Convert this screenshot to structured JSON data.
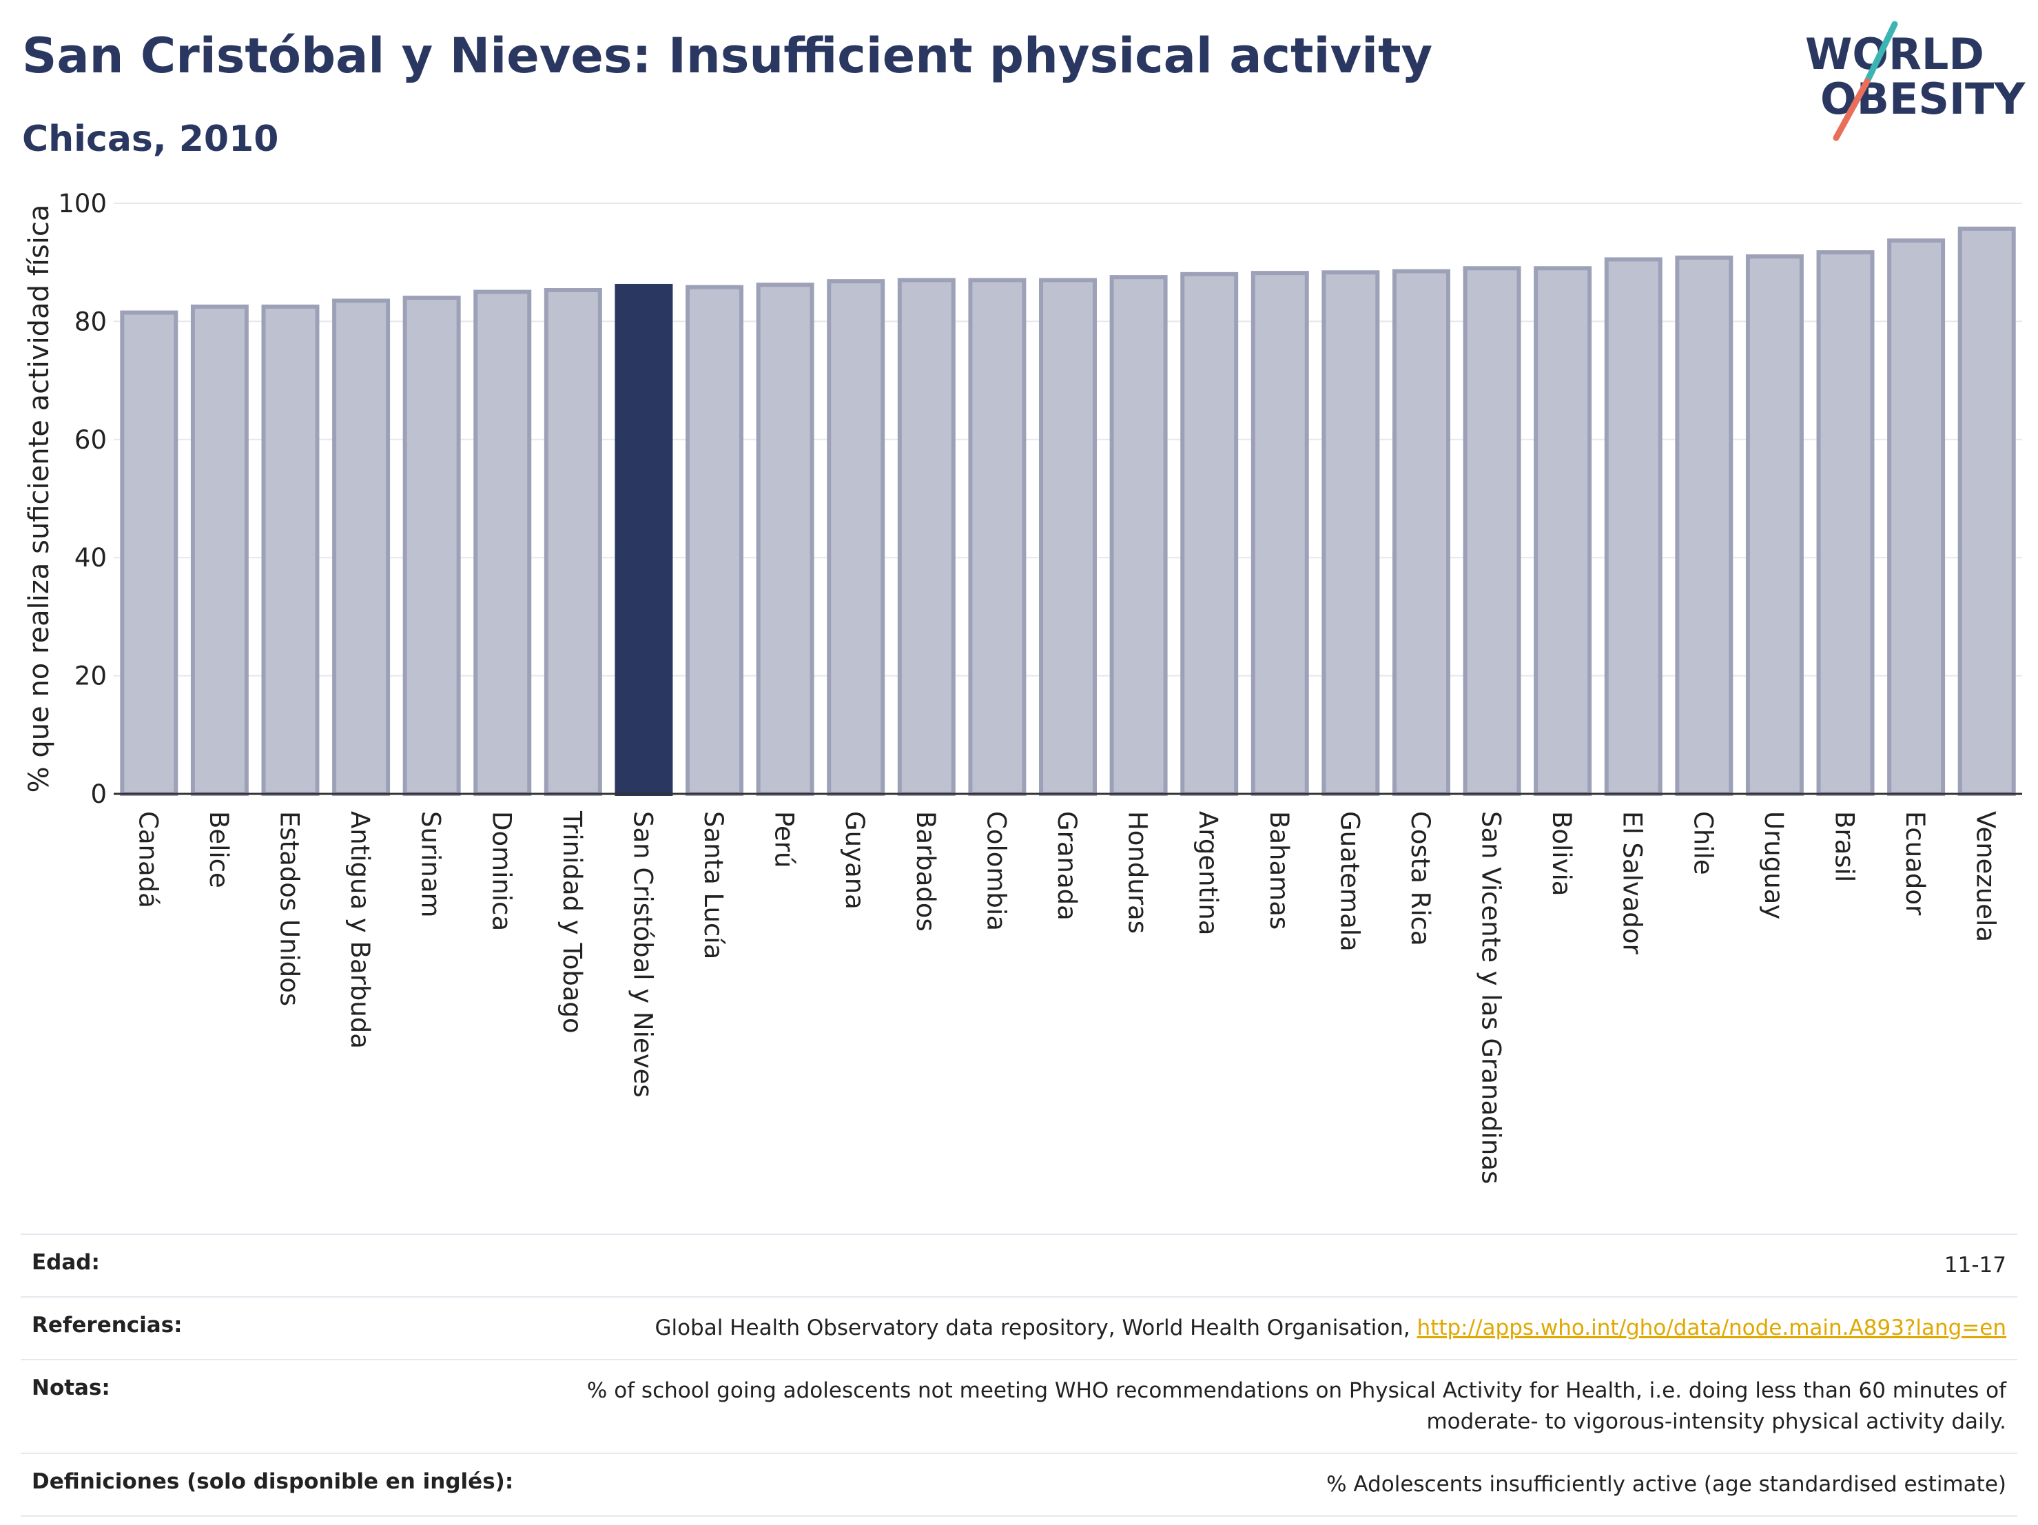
{
  "header": {
    "title": "San Cristóbal y Nieves: Insufficient physical activity",
    "subtitle": "Chicas, 2010"
  },
  "logo": {
    "line1": "WORLD",
    "line2": "OBESITY"
  },
  "colors": {
    "highlight": "#2a3760",
    "bar_fill": "#bec1d0",
    "bar_stroke": "#9da1b8",
    "title": "#2a3760",
    "link": "#e0a800",
    "logo_teal": "#3cb4b4",
    "logo_coral": "#e8705a"
  },
  "chart_data": {
    "type": "bar",
    "ylabel": "% que no realiza suficiente actividad física",
    "ylim": [
      0,
      100
    ],
    "yticks": [
      0,
      20,
      40,
      60,
      80,
      100
    ],
    "grid": true,
    "highlight": "San Cristóbal y Nieves",
    "categories": [
      "Canadá",
      "Belice",
      "Estados Unidos",
      "Antigua y Barbuda",
      "Surinam",
      "Dominica",
      "Trinidad y Tobago",
      "San Cristóbal y Nieves",
      "Santa Lucía",
      "Perú",
      "Guyana",
      "Barbados",
      "Colombia",
      "Granada",
      "Honduras",
      "Argentina",
      "Bahamas",
      "Guatemala",
      "Costa Rica",
      "San Vicente y las Granadinas",
      "Bolivia",
      "El Salvador",
      "Chile",
      "Uruguay",
      "Brasil",
      "Ecuador",
      "Venezuela"
    ],
    "values": [
      81.5,
      82.5,
      82.5,
      83.5,
      84,
      85,
      85.3,
      86,
      85.8,
      86.2,
      86.8,
      87,
      87,
      87,
      87.5,
      88,
      88.2,
      88.3,
      88.5,
      89,
      89,
      90.5,
      90.8,
      91,
      91.7,
      93.7,
      95.7
    ]
  },
  "info": {
    "age_label": "Edad:",
    "age_value": "11-17",
    "refs_label": "Referencias:",
    "refs_text": "Global Health Observatory data repository, World Health Organisation, ",
    "refs_link": "http://apps.who.int/gho/data/node.main.A893?lang=en",
    "notes_label": "Notas:",
    "notes_value": "% of school going adolescents not meeting WHO recommendations on Physical Activity for Health, i.e. doing less than 60 minutes of moderate- to vigorous-intensity physical activity daily.",
    "defs_label": "Definiciones (solo disponible en inglés):",
    "defs_value": "% Adolescents insufficiently active (age standardised estimate)"
  }
}
